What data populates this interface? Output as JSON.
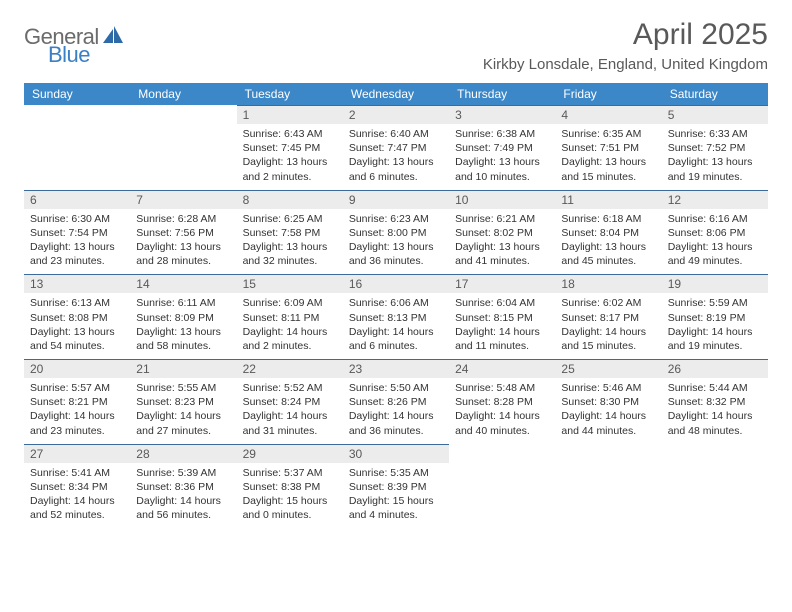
{
  "logo": {
    "general": "General",
    "blue": "Blue"
  },
  "title": "April 2025",
  "location": "Kirkby Lonsdale, England, United Kingdom",
  "header_bg": "#3b87c8",
  "header_fg": "#ffffff",
  "daynum_bg": "#ececec",
  "cell_border": "#3b6b9a",
  "weekdays": [
    "Sunday",
    "Monday",
    "Tuesday",
    "Wednesday",
    "Thursday",
    "Friday",
    "Saturday"
  ],
  "weeks": [
    [
      null,
      null,
      {
        "n": "1",
        "sr": "6:43 AM",
        "ss": "7:45 PM",
        "dl": "13 hours and 2 minutes."
      },
      {
        "n": "2",
        "sr": "6:40 AM",
        "ss": "7:47 PM",
        "dl": "13 hours and 6 minutes."
      },
      {
        "n": "3",
        "sr": "6:38 AM",
        "ss": "7:49 PM",
        "dl": "13 hours and 10 minutes."
      },
      {
        "n": "4",
        "sr": "6:35 AM",
        "ss": "7:51 PM",
        "dl": "13 hours and 15 minutes."
      },
      {
        "n": "5",
        "sr": "6:33 AM",
        "ss": "7:52 PM",
        "dl": "13 hours and 19 minutes."
      }
    ],
    [
      {
        "n": "6",
        "sr": "6:30 AM",
        "ss": "7:54 PM",
        "dl": "13 hours and 23 minutes."
      },
      {
        "n": "7",
        "sr": "6:28 AM",
        "ss": "7:56 PM",
        "dl": "13 hours and 28 minutes."
      },
      {
        "n": "8",
        "sr": "6:25 AM",
        "ss": "7:58 PM",
        "dl": "13 hours and 32 minutes."
      },
      {
        "n": "9",
        "sr": "6:23 AM",
        "ss": "8:00 PM",
        "dl": "13 hours and 36 minutes."
      },
      {
        "n": "10",
        "sr": "6:21 AM",
        "ss": "8:02 PM",
        "dl": "13 hours and 41 minutes."
      },
      {
        "n": "11",
        "sr": "6:18 AM",
        "ss": "8:04 PM",
        "dl": "13 hours and 45 minutes."
      },
      {
        "n": "12",
        "sr": "6:16 AM",
        "ss": "8:06 PM",
        "dl": "13 hours and 49 minutes."
      }
    ],
    [
      {
        "n": "13",
        "sr": "6:13 AM",
        "ss": "8:08 PM",
        "dl": "13 hours and 54 minutes."
      },
      {
        "n": "14",
        "sr": "6:11 AM",
        "ss": "8:09 PM",
        "dl": "13 hours and 58 minutes."
      },
      {
        "n": "15",
        "sr": "6:09 AM",
        "ss": "8:11 PM",
        "dl": "14 hours and 2 minutes."
      },
      {
        "n": "16",
        "sr": "6:06 AM",
        "ss": "8:13 PM",
        "dl": "14 hours and 6 minutes."
      },
      {
        "n": "17",
        "sr": "6:04 AM",
        "ss": "8:15 PM",
        "dl": "14 hours and 11 minutes."
      },
      {
        "n": "18",
        "sr": "6:02 AM",
        "ss": "8:17 PM",
        "dl": "14 hours and 15 minutes."
      },
      {
        "n": "19",
        "sr": "5:59 AM",
        "ss": "8:19 PM",
        "dl": "14 hours and 19 minutes."
      }
    ],
    [
      {
        "n": "20",
        "sr": "5:57 AM",
        "ss": "8:21 PM",
        "dl": "14 hours and 23 minutes."
      },
      {
        "n": "21",
        "sr": "5:55 AM",
        "ss": "8:23 PM",
        "dl": "14 hours and 27 minutes."
      },
      {
        "n": "22",
        "sr": "5:52 AM",
        "ss": "8:24 PM",
        "dl": "14 hours and 31 minutes."
      },
      {
        "n": "23",
        "sr": "5:50 AM",
        "ss": "8:26 PM",
        "dl": "14 hours and 36 minutes."
      },
      {
        "n": "24",
        "sr": "5:48 AM",
        "ss": "8:28 PM",
        "dl": "14 hours and 40 minutes."
      },
      {
        "n": "25",
        "sr": "5:46 AM",
        "ss": "8:30 PM",
        "dl": "14 hours and 44 minutes."
      },
      {
        "n": "26",
        "sr": "5:44 AM",
        "ss": "8:32 PM",
        "dl": "14 hours and 48 minutes."
      }
    ],
    [
      {
        "n": "27",
        "sr": "5:41 AM",
        "ss": "8:34 PM",
        "dl": "14 hours and 52 minutes."
      },
      {
        "n": "28",
        "sr": "5:39 AM",
        "ss": "8:36 PM",
        "dl": "14 hours and 56 minutes."
      },
      {
        "n": "29",
        "sr": "5:37 AM",
        "ss": "8:38 PM",
        "dl": "15 hours and 0 minutes."
      },
      {
        "n": "30",
        "sr": "5:35 AM",
        "ss": "8:39 PM",
        "dl": "15 hours and 4 minutes."
      },
      null,
      null,
      null
    ]
  ],
  "labels": {
    "sunrise": "Sunrise:",
    "sunset": "Sunset:",
    "daylight": "Daylight:"
  }
}
